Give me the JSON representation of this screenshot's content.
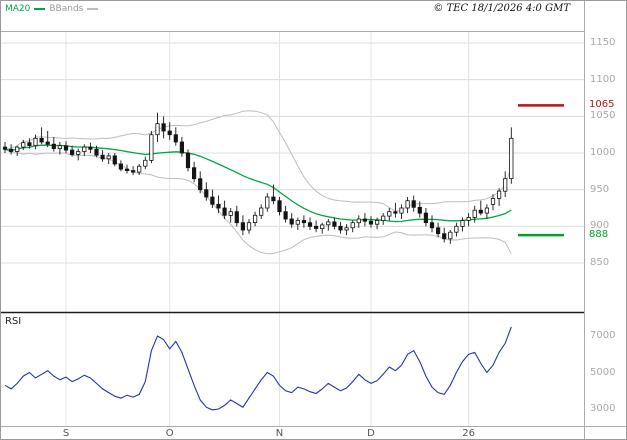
{
  "header": {
    "ma20_label": "MA20",
    "bbands_label": "BBands",
    "copyright": "© TEC 18/1/2026 4:0 GMT"
  },
  "rsi_panel": {
    "label": "RSI"
  },
  "levels": {
    "resistance": {
      "value": "1065",
      "price": 1065,
      "color": "#b91414"
    },
    "support": {
      "value": "888",
      "price": 888,
      "color": "#089c2a"
    }
  },
  "axes": {
    "price_ticks": [
      1150,
      1100,
      1050,
      1000,
      950,
      900,
      850
    ],
    "rsi_ticks": [
      7000,
      5000,
      3000
    ],
    "x_labels": [
      {
        "label": "S",
        "index": 10
      },
      {
        "label": "O",
        "index": 27
      },
      {
        "label": "N",
        "index": 45
      },
      {
        "label": "D",
        "index": 60
      },
      {
        "label": "26",
        "index": 76
      }
    ]
  },
  "chart_data": {
    "type": "candlestick",
    "title": "",
    "overlays": [
      "MA20",
      "BollingerBands"
    ],
    "price_axis": {
      "min": 850,
      "max": 1150,
      "ticks": [
        1150,
        1100,
        1050,
        1000,
        950,
        900,
        850
      ]
    },
    "levels": {
      "resistance": 1065,
      "support": 888
    },
    "x_period_labels": [
      "S",
      "O",
      "N",
      "D",
      "26"
    ],
    "colors": {
      "ma20": "#00a843",
      "bbands": "#bdbdbd",
      "candle": "#141414",
      "rsi": "#2433ad",
      "grid": "#dcdcdc",
      "grid_v": "#e3e3e3"
    },
    "candles": [
      [
        1008,
        1015,
        1000,
        1005
      ],
      [
        1005,
        1012,
        998,
        1002
      ],
      [
        1002,
        1010,
        996,
        1008
      ],
      [
        1008,
        1018,
        1004,
        1014
      ],
      [
        1014,
        1020,
        1006,
        1010
      ],
      [
        1010,
        1025,
        1005,
        1020
      ],
      [
        1020,
        1035,
        1012,
        1015
      ],
      [
        1015,
        1030,
        1008,
        1012
      ],
      [
        1012,
        1022,
        1002,
        1006
      ],
      [
        1006,
        1015,
        998,
        1010
      ],
      [
        1010,
        1016,
        1000,
        1004
      ],
      [
        1004,
        1010,
        995,
        998
      ],
      [
        998,
        1006,
        990,
        1002
      ],
      [
        1002,
        1012,
        996,
        1008
      ],
      [
        1008,
        1014,
        1000,
        1005
      ],
      [
        1005,
        1010,
        994,
        997
      ],
      [
        997,
        1004,
        988,
        992
      ],
      [
        992,
        1000,
        985,
        996
      ],
      [
        996,
        1000,
        982,
        985
      ],
      [
        985,
        990,
        975,
        978
      ],
      [
        978,
        984,
        972,
        976
      ],
      [
        976,
        982,
        970,
        974
      ],
      [
        974,
        985,
        970,
        982
      ],
      [
        982,
        995,
        978,
        990
      ],
      [
        990,
        1030,
        986,
        1025
      ],
      [
        1025,
        1055,
        1015,
        1040
      ],
      [
        1040,
        1050,
        1020,
        1030
      ],
      [
        1030,
        1042,
        1018,
        1025
      ],
      [
        1025,
        1035,
        1010,
        1015
      ],
      [
        1015,
        1022,
        995,
        1000
      ],
      [
        1000,
        1005,
        975,
        980
      ],
      [
        980,
        988,
        960,
        965
      ],
      [
        965,
        975,
        945,
        950
      ],
      [
        950,
        960,
        935,
        940
      ],
      [
        940,
        950,
        925,
        930
      ],
      [
        930,
        942,
        918,
        925
      ],
      [
        925,
        935,
        910,
        915
      ],
      [
        915,
        925,
        905,
        920
      ],
      [
        920,
        928,
        900,
        905
      ],
      [
        905,
        915,
        888,
        895
      ],
      [
        895,
        910,
        890,
        905
      ],
      [
        905,
        920,
        900,
        915
      ],
      [
        915,
        930,
        910,
        925
      ],
      [
        925,
        945,
        920,
        940
      ],
      [
        940,
        957,
        930,
        935
      ],
      [
        935,
        940,
        915,
        920
      ],
      [
        920,
        928,
        905,
        910
      ],
      [
        910,
        918,
        898,
        903
      ],
      [
        903,
        912,
        895,
        908
      ],
      [
        908,
        915,
        898,
        905
      ],
      [
        905,
        912,
        895,
        900
      ],
      [
        900,
        908,
        892,
        897
      ],
      [
        897,
        905,
        890,
        902
      ],
      [
        902,
        910,
        894,
        906
      ],
      [
        906,
        912,
        896,
        900
      ],
      [
        900,
        906,
        890,
        895
      ],
      [
        895,
        903,
        888,
        898
      ],
      [
        898,
        908,
        892,
        905
      ],
      [
        905,
        915,
        898,
        910
      ],
      [
        910,
        918,
        900,
        907
      ],
      [
        907,
        914,
        898,
        903
      ],
      [
        903,
        912,
        896,
        908
      ],
      [
        908,
        918,
        902,
        914
      ],
      [
        914,
        925,
        908,
        920
      ],
      [
        920,
        932,
        912,
        918
      ],
      [
        918,
        930,
        910,
        925
      ],
      [
        925,
        940,
        918,
        935
      ],
      [
        935,
        942,
        920,
        926
      ],
      [
        926,
        934,
        912,
        918
      ],
      [
        918,
        925,
        900,
        905
      ],
      [
        905,
        915,
        892,
        898
      ],
      [
        898,
        905,
        885,
        890
      ],
      [
        890,
        898,
        878,
        883
      ],
      [
        883,
        895,
        876,
        892
      ],
      [
        892,
        905,
        886,
        900
      ],
      [
        900,
        912,
        893,
        908
      ],
      [
        908,
        918,
        900,
        912
      ],
      [
        912,
        928,
        905,
        922
      ],
      [
        922,
        935,
        915,
        918
      ],
      [
        918,
        930,
        910,
        925
      ],
      [
        930,
        944,
        922,
        938
      ],
      [
        938,
        952,
        928,
        948
      ],
      [
        948,
        975,
        940,
        965
      ],
      [
        965,
        1035,
        958,
        1020
      ]
    ],
    "rsi_axis": {
      "min": 0,
      "max": 10000,
      "ticks": [
        7000,
        5000,
        3000
      ]
    },
    "rsi": [
      4300,
      4100,
      4400,
      4800,
      5000,
      4700,
      4900,
      5100,
      4800,
      4600,
      4750,
      4500,
      4650,
      4850,
      4700,
      4400,
      4100,
      3900,
      3700,
      3600,
      3750,
      3650,
      3800,
      4500,
      6200,
      7000,
      6800,
      6300,
      6700,
      6100,
      5200,
      4300,
      3500,
      3100,
      2950,
      3000,
      3200,
      3500,
      3300,
      3100,
      3600,
      4100,
      4600,
      5000,
      4800,
      4300,
      4000,
      3900,
      4200,
      4100,
      3950,
      3850,
      4100,
      4400,
      4200,
      4000,
      4150,
      4500,
      4900,
      4600,
      4400,
      4550,
      4900,
      5300,
      5100,
      5400,
      6000,
      6200,
      5600,
      4800,
      4200,
      3900,
      3800,
      4300,
      5000,
      5600,
      6000,
      6100,
      5500,
      5000,
      5400,
      6100,
      6600,
      7500
    ]
  }
}
